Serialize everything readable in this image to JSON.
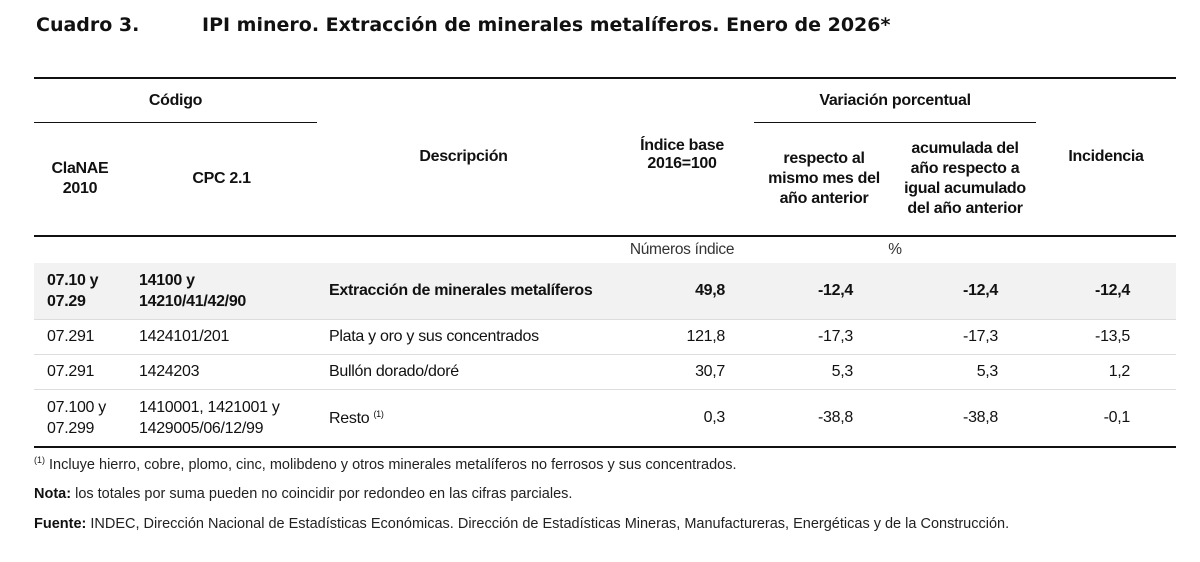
{
  "title": {
    "number": "Cuadro 3.",
    "text": "IPI minero. Extracción de minerales metalíferos. Enero de 2026*"
  },
  "table": {
    "headers": {
      "codigo": "Código",
      "clanae": "ClaNAE 2010",
      "cpc": "CPC 2.1",
      "descripcion": "Descripción",
      "indice": "Índice base 2016=100",
      "variacion": "Variación porcentual",
      "mismo_mes": "respecto al mismo mes del año anterior",
      "acumulada": "acumulada del año respecto a igual acumulado del año anterior",
      "incidencia": "Incidencia"
    },
    "units": {
      "indice": "Números índice",
      "variacion": "%"
    },
    "rows": [
      {
        "clanae": "07.10 y 07.29",
        "cpc": "14100 y 14210/41/42/90",
        "descripcion": "Extracción de minerales metalíferos",
        "indice": "49,8",
        "mismo_mes": "-12,4",
        "acumulada": "-12,4",
        "incidencia": "-12,4"
      },
      {
        "clanae": "07.291",
        "cpc": "1424101/201",
        "descripcion": "Plata y oro y sus concentrados",
        "indice": "121,8",
        "mismo_mes": "-17,3",
        "acumulada": "-17,3",
        "incidencia": "-13,5"
      },
      {
        "clanae": "07.291",
        "cpc": "1424203",
        "descripcion": "Bullón dorado/doré",
        "indice": "30,7",
        "mismo_mes": "5,3",
        "acumulada": "5,3",
        "incidencia": "1,2"
      },
      {
        "clanae": "07.100 y 07.299",
        "cpc": "1410001, 1421001 y 1429005/06/12/99",
        "descripcion": "Resto",
        "descripcion_sup": "(1)",
        "indice": "0,3",
        "mismo_mes": "-38,8",
        "acumulada": "-38,8",
        "incidencia": "-0,1"
      }
    ]
  },
  "notes": {
    "footnote_mark": "(1)",
    "footnote": "Incluye hierro, cobre, plomo, cinc, molibdeno y otros minerales metalíferos no ferrosos y sus concentrados.",
    "nota_label": "Nota:",
    "nota": "los totales por suma pueden no coincidir por redondeo en las cifras parciales.",
    "fuente_label": "Fuente:",
    "fuente": "INDEC, Dirección Nacional de Estadísticas Económicas. Dirección de Estadísticas Mineras, Manufactureras, Energéticas y de la Construcción."
  }
}
